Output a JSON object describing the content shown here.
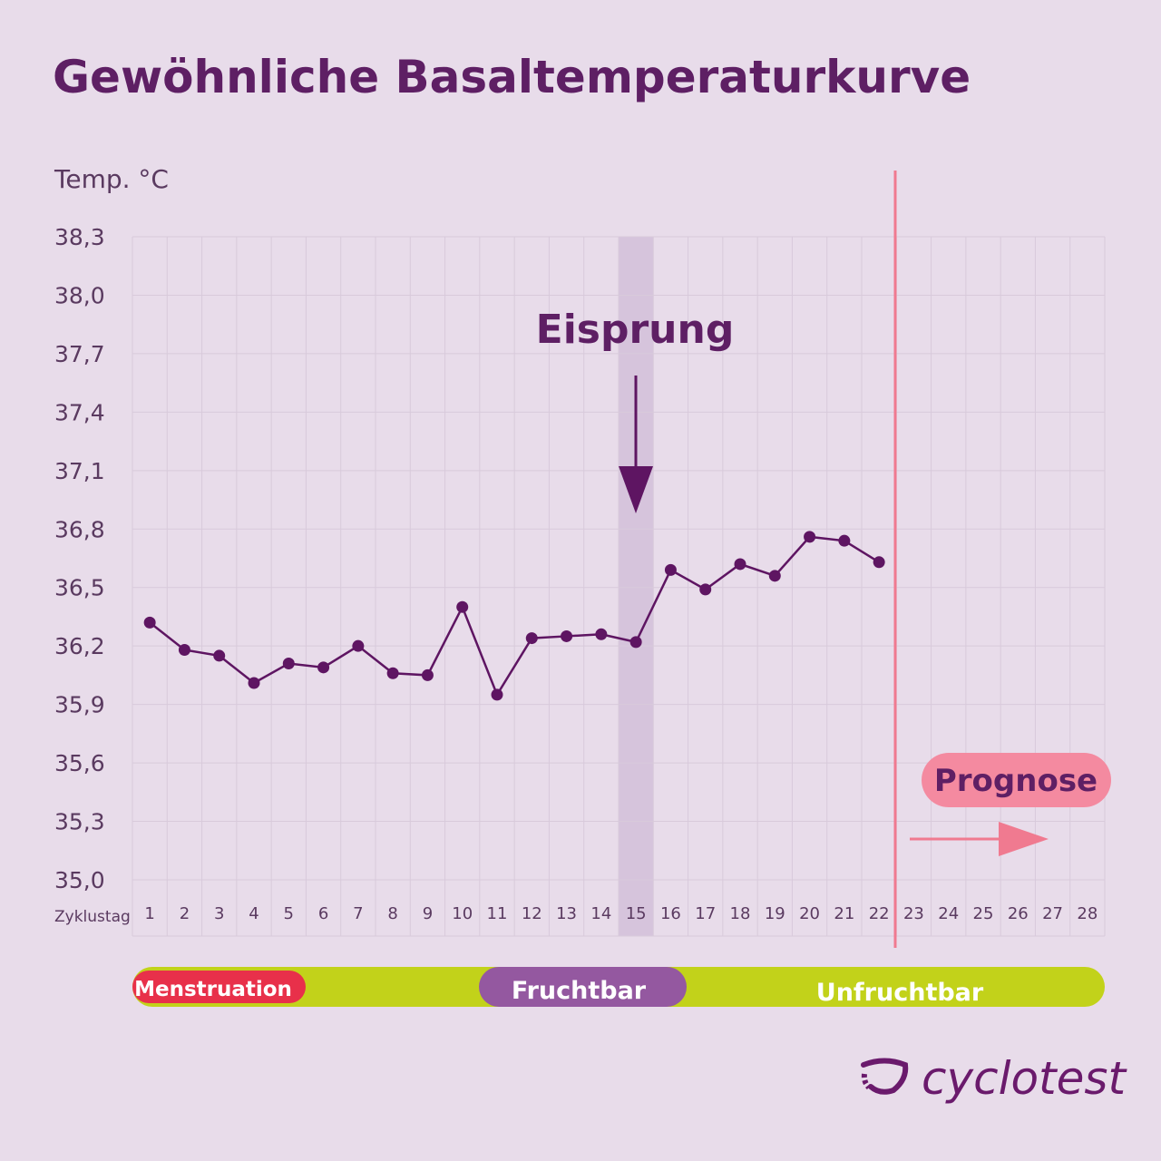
{
  "title": "Gewöhnliche Basaltemperaturkurve",
  "chart_data": {
    "type": "line",
    "title": "Gewöhnliche Basaltemperaturkurve",
    "ylabel": "Temp. °C",
    "xlabel": "Zyklustag",
    "ylim": [
      35.0,
      38.3
    ],
    "yticks": [
      "38,3",
      "38,0",
      "37,7",
      "37,4",
      "37,1",
      "36,8",
      "36,5",
      "36,2",
      "35,9",
      "35,6",
      "35,3",
      "35,0"
    ],
    "ytick_values": [
      38.3,
      38.0,
      37.7,
      37.4,
      37.1,
      36.8,
      36.5,
      36.2,
      35.9,
      35.6,
      35.3,
      35.0
    ],
    "x": [
      1,
      2,
      3,
      4,
      5,
      6,
      7,
      8,
      9,
      10,
      11,
      12,
      13,
      14,
      15,
      16,
      17,
      18,
      19,
      20,
      21,
      22,
      23,
      24,
      25,
      26,
      27,
      28
    ],
    "series": [
      {
        "x": [
          1,
          2,
          3,
          4,
          5,
          6,
          7,
          8,
          9,
          10,
          11,
          12,
          13,
          14,
          15,
          16,
          17,
          18,
          19,
          20,
          21,
          22
        ],
        "values": [
          36.32,
          36.18,
          36.15,
          36.01,
          36.11,
          36.09,
          36.2,
          36.06,
          36.05,
          36.4,
          35.95,
          36.24,
          36.25,
          36.26,
          36.22,
          36.59,
          36.49,
          36.62,
          36.56,
          36.76,
          36.74,
          36.63
        ]
      }
    ],
    "grid": true,
    "annotations": {
      "ovulation": {
        "label": "Eisprung",
        "day": 15
      },
      "forecast": {
        "label": "Prognose",
        "from_day": 22.5
      }
    },
    "phases": [
      {
        "label": "Menstruation",
        "from_day": 1,
        "to_day": 5,
        "color": "#e8304a"
      },
      {
        "label": "Fruchtbar",
        "from_day": 11,
        "to_day": 16,
        "color": "#9458a0"
      },
      {
        "label": "Unfruchtbar",
        "from_day": 1,
        "to_day": 28,
        "color": "#c2d21a"
      }
    ]
  },
  "colors": {
    "background": "#e8dcea",
    "line": "#5e1562",
    "grid": "#d8cadb",
    "highlight": "#d6c4dc",
    "forecast": "#f07a90",
    "prognose_pill": "#f48aa0"
  },
  "logo": {
    "text": "cyclotest"
  }
}
